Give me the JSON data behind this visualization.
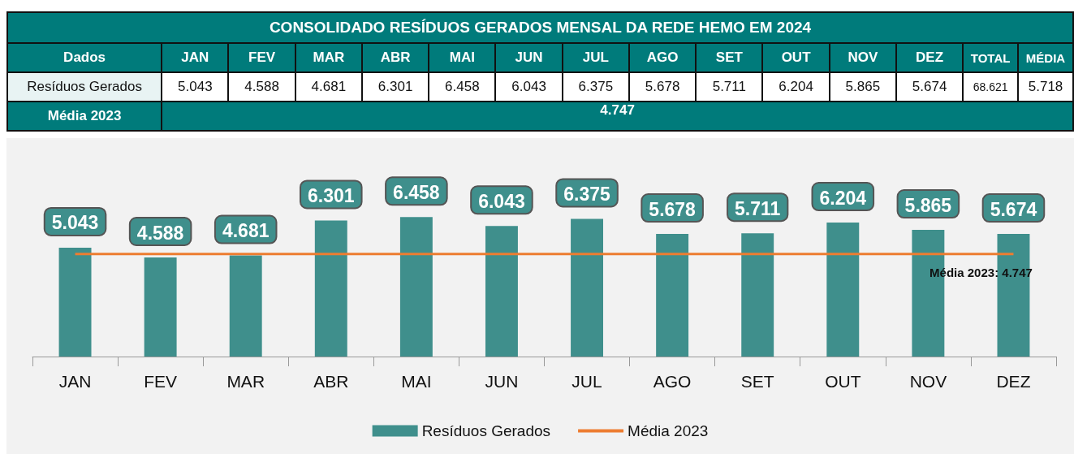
{
  "chart_data": {
    "type": "bar",
    "title": "CONSOLIDADO RESÍDUOS GERADOS MENSAL DA REDE HEMO EM  2024",
    "categories": [
      "JAN",
      "FEV",
      "MAR",
      "ABR",
      "MAI",
      "JUN",
      "JUL",
      "AGO",
      "SET",
      "OUT",
      "NOV",
      "DEZ"
    ],
    "series": [
      {
        "name": "Resíduos Gerados",
        "color": "#3f8f8c",
        "values": [
          5043,
          4588,
          4681,
          6301,
          6458,
          6043,
          6375,
          5678,
          5711,
          6204,
          5865,
          5674
        ],
        "value_labels": [
          "5.043",
          "4.588",
          "4.681",
          "6.301",
          "6.458",
          "6.043",
          "6.375",
          "5.678",
          "5.711",
          "6.204",
          "5.865",
          "5.674"
        ]
      },
      {
        "name": "Média 2023",
        "type": "line",
        "color": "#ed7d31",
        "values": [
          4747,
          4747,
          4747,
          4747,
          4747,
          4747,
          4747,
          4747,
          4747,
          4747,
          4747,
          4747
        ]
      }
    ],
    "annotations": [
      "Dados",
      "TOTAL",
      "68.621",
      "MÉDIA",
      "5.718",
      "Média 2023",
      "4.747",
      {
        "text": "Média 2023: 4.747",
        "x": "DEZ",
        "y": 4747
      }
    ],
    "marker": "none",
    "line_style": "solid",
    "grid": false,
    "tick_labels": "x",
    "legend": "bottom"
  }
}
